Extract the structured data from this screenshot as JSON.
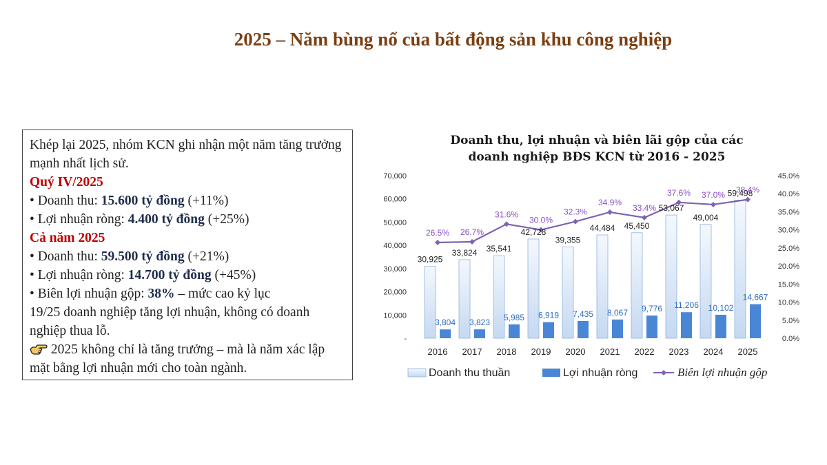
{
  "title": "2025 – Năm bùng nổ của bất động sản khu công nghiệp",
  "textbox": {
    "intro": "Khép lại 2025, nhóm KCN ghi nhận một năm tăng trưởng mạnh nhất lịch sử.",
    "q4_heading": "Quý IV/2025",
    "q4_revenue_label": "• Doanh thu: ",
    "q4_revenue_value": "15.600 tỷ đồng",
    "q4_revenue_change": " (+11%)",
    "q4_profit_label": "• Lợi nhuận ròng: ",
    "q4_profit_value": "4.400 tỷ đồng",
    "q4_profit_change": " (+25%)",
    "year_heading": "Cả năm 2025",
    "year_revenue_label": "• Doanh thu: ",
    "year_revenue_value": "59.500 tỷ đồng",
    "year_revenue_change": " (+21%)",
    "year_profit_label": "• Lợi nhuận ròng: ",
    "year_profit_value": "14.700 tỷ đồng",
    "year_profit_change": " (+45%)",
    "margin_label": "• Biên lợi nhuận gộp: ",
    "margin_value": "38%",
    "margin_note": " – mức cao kỷ lục",
    "companies_note": "19/25 doanh nghiệp tăng lợi nhuận, không có doanh nghiệp thua lỗ.",
    "conclusion": " 2025 không chỉ là tăng trưởng – mà là năm xác lập mặt bằng lợi nhuận mới cho toàn ngành.",
    "conclusion_icon": "pointing-hand-icon"
  },
  "chart_data": {
    "type": "bar",
    "title_line1": "Doanh thu, lợi nhuận và biên lãi gộp của các",
    "title_line2": "doanh nghiệp BĐS KCN từ 2016 - 2025",
    "categories": [
      "2016",
      "2017",
      "2018",
      "2019",
      "2020",
      "2021",
      "2022",
      "2023",
      "2024",
      "2025"
    ],
    "series": [
      {
        "name": "Doanh thu thuần",
        "type": "bar",
        "axis": "left",
        "color": "#c5d9f1",
        "values": [
          30925,
          33824,
          35541,
          42728,
          39355,
          44484,
          45450,
          53067,
          49004,
          59498
        ],
        "labels": [
          "30,925",
          "33,824",
          "35,541",
          "42,728",
          "39,355",
          "44,484",
          "45,450",
          "53,067",
          "49,004",
          "59,498"
        ]
      },
      {
        "name": "Lợi nhuận ròng",
        "type": "bar",
        "axis": "left",
        "color": "#4a86d6",
        "values": [
          3804,
          3823,
          5985,
          6919,
          7435,
          8067,
          9776,
          11206,
          10102,
          14667
        ],
        "labels": [
          "3,804",
          "3,823",
          "5,985",
          "6,919",
          "7,435",
          "8,067",
          "9,776",
          "11,206",
          "10,102",
          "14,667"
        ]
      },
      {
        "name": "Biên lợi nhuận gộp",
        "type": "line",
        "axis": "right",
        "color": "#7f62b3",
        "values": [
          26.5,
          26.7,
          31.6,
          30.0,
          32.3,
          34.9,
          33.4,
          37.6,
          37.0,
          38.4
        ],
        "labels": [
          "26.5%",
          "26.7%",
          "31.6%",
          "30.0%",
          "32.3%",
          "34.9%",
          "33.4%",
          "37.6%",
          "37.0%",
          "38.4%"
        ]
      }
    ],
    "yleft": {
      "min": 0,
      "max": 70000,
      "ticks": [
        "-",
        "10,000",
        "20,000",
        "30,000",
        "40,000",
        "50,000",
        "60,000",
        "70,000"
      ]
    },
    "yright": {
      "min": 0,
      "max": 45,
      "ticks": [
        "0.0%",
        "5.0%",
        "10.0%",
        "15.0%",
        "20.0%",
        "25.0%",
        "30.0%",
        "35.0%",
        "40.0%",
        "45.0%"
      ]
    },
    "legend_position": "bottom"
  }
}
